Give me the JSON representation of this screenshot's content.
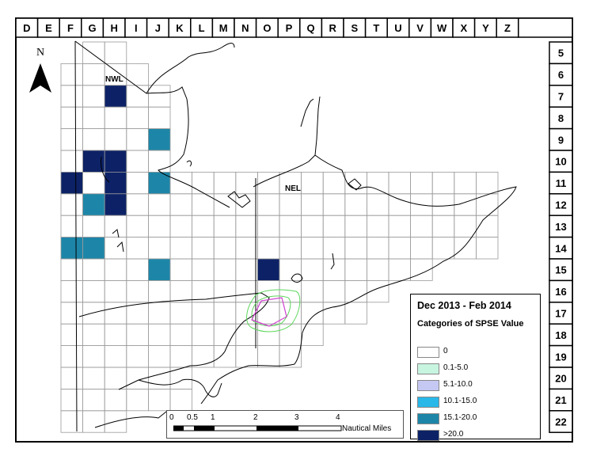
{
  "columns": [
    "D",
    "E",
    "F",
    "G",
    "H",
    "I",
    "J",
    "K",
    "L",
    "M",
    "N",
    "O",
    "P",
    "Q",
    "R",
    "S",
    "T",
    "U",
    "V",
    "W",
    "X",
    "Y",
    "Z"
  ],
  "rows": [
    "5",
    "6",
    "7",
    "8",
    "9",
    "10",
    "11",
    "12",
    "13",
    "14",
    "15",
    "16",
    "17",
    "18",
    "19",
    "20",
    "21",
    "22"
  ],
  "north_arrow": {
    "label": "N"
  },
  "place_labels": [
    {
      "id": "nwl",
      "text": "NWL"
    },
    {
      "id": "nel",
      "text": "NEL"
    }
  ],
  "legend": {
    "title": "Dec 2013 - Feb 2014",
    "subtitle": "Categories of SPSE Value",
    "items": [
      {
        "label": "0",
        "color": "#ffffff"
      },
      {
        "label": "0.1-5.0",
        "color": "#c8f5e0"
      },
      {
        "label": "5.1-10.0",
        "color": "#c4c8f2"
      },
      {
        "label": "10.1-15.0",
        "color": "#29b8e8"
      },
      {
        "label": "15.1-20.0",
        "color": "#1d86a8"
      },
      {
        "label": ">20.0",
        "color": "#0d2266"
      }
    ]
  },
  "scale_bar": {
    "tick_labels": [
      "0",
      "0.5",
      "1",
      "2",
      "3",
      "4"
    ],
    "units": "Nautical Miles"
  },
  "shaded_cells": [
    {
      "col": "H",
      "row": "7",
      "category": ">20.0"
    },
    {
      "col": "J",
      "row": "9",
      "category": "15.1-20.0"
    },
    {
      "col": "G",
      "row": "10",
      "category": ">20.0"
    },
    {
      "col": "H",
      "row": "10",
      "category": ">20.0"
    },
    {
      "col": "F",
      "row": "11",
      "category": ">20.0"
    },
    {
      "col": "H",
      "row": "11",
      "category": ">20.0"
    },
    {
      "col": "J",
      "row": "11",
      "category": "15.1-20.0"
    },
    {
      "col": "G",
      "row": "12",
      "category": "15.1-20.0"
    },
    {
      "col": "H",
      "row": "12",
      "category": ">20.0"
    },
    {
      "col": "F",
      "row": "14",
      "category": "15.1-20.0"
    },
    {
      "col": "G",
      "row": "14",
      "category": "15.1-20.0"
    },
    {
      "col": "J",
      "row": "15",
      "category": "15.1-20.0"
    },
    {
      "col": "O",
      "row": "15",
      "category": ">20.0"
    }
  ]
}
